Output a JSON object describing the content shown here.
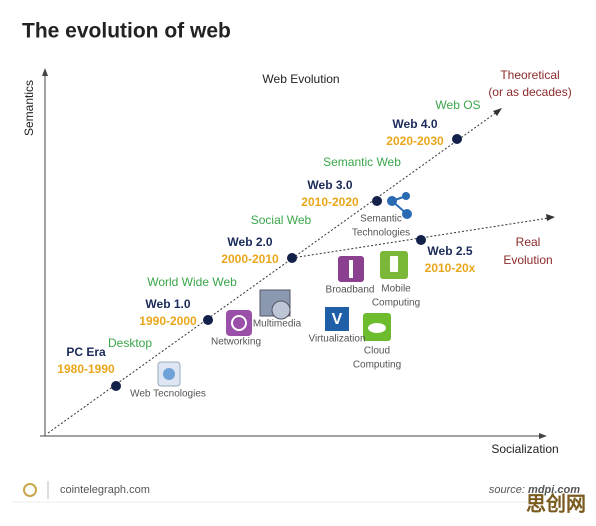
{
  "header": {
    "title": "The evolution of web"
  },
  "diagram": {
    "heading": "Web Evolution",
    "y_axis": "Semantics",
    "x_axis": "Socialization",
    "theoretical": [
      "Theoretical",
      "(or as decades)"
    ],
    "real": [
      "Real",
      "Evolution"
    ],
    "stages": [
      {
        "name": "PC Era",
        "period": "1980-1990",
        "theme": "Desktop"
      },
      {
        "name": "Web 1.0",
        "period": "1990-2000",
        "theme": "World Wide Web"
      },
      {
        "name": "Web 2.0",
        "period": "2000-2010",
        "theme": "Social Web"
      },
      {
        "name": "Web 3.0",
        "period": "2010-2020",
        "theme": "Semantic Web"
      },
      {
        "name": "Web 4.0",
        "period": "2020-2030",
        "theme": "Web OS"
      },
      {
        "name": "Web 2.5",
        "period": "2010-20x"
      }
    ],
    "technologies": [
      [
        "Web Tecnologies"
      ],
      [
        "Networking"
      ],
      [
        "Multimedia"
      ],
      [
        "Broadband"
      ],
      [
        "Mobile",
        "Computing"
      ],
      [
        "Virtualization"
      ],
      [
        "Cloud",
        "Computing"
      ],
      [
        "Semantic",
        "Technologies"
      ]
    ]
  },
  "footer": {
    "site": "cointelegraph.com",
    "source_prefix": "source:",
    "source": "mdpi.com",
    "watermark": "思创网"
  }
}
